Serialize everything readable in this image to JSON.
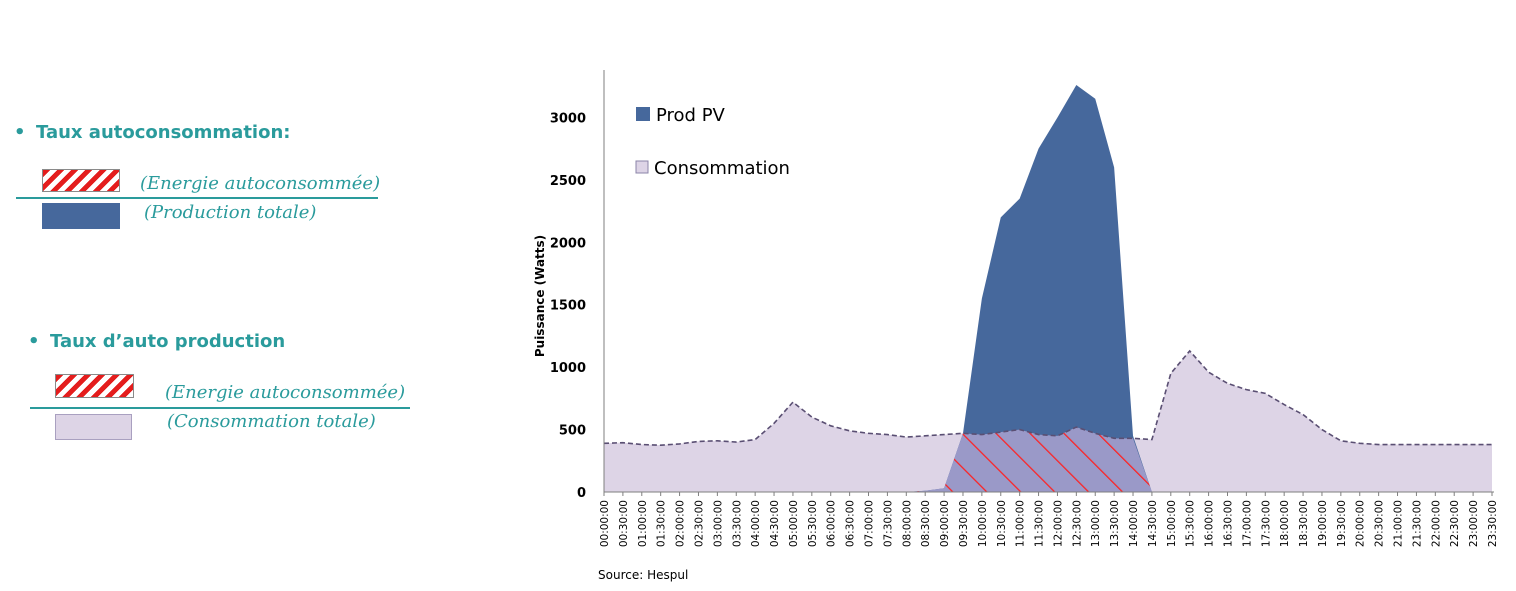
{
  "left": {
    "section1": {
      "bullet": "•",
      "title": "Taux autoconsommation:",
      "numerator": "(Energie autoconsommée)",
      "denominator": "(Production totale)"
    },
    "section2": {
      "bullet": "•",
      "title": "Taux d’auto production",
      "numerator": "(Energie autoconsommée)",
      "denominator": "(Consommation totale)"
    }
  },
  "colors": {
    "teal": "#2a9b9c",
    "prod": "#46689c",
    "conso": "#ddd4e6",
    "overlap": "#9a99c8",
    "hatch": "#ff2020"
  },
  "chart_data": {
    "type": "area",
    "ylabel": "Puissance (Watts)",
    "ylim": [
      0,
      3300
    ],
    "yticks": [
      0,
      500,
      1000,
      1500,
      2000,
      2500,
      3000
    ],
    "x": [
      "00:00:00",
      "00:30:00",
      "01:00:00",
      "01:30:00",
      "02:00:00",
      "02:30:00",
      "03:00:00",
      "03:30:00",
      "04:00:00",
      "04:30:00",
      "05:00:00",
      "05:30:00",
      "06:00:00",
      "06:30:00",
      "07:00:00",
      "07:30:00",
      "08:00:00",
      "08:30:00",
      "09:00:00",
      "09:30:00",
      "10:00:00",
      "10:30:00",
      "11:00:00",
      "11:30:00",
      "12:00:00",
      "12:30:00",
      "13:00:00",
      "13:30:00",
      "14:00:00",
      "14:30:00",
      "15:00:00",
      "15:30:00",
      "16:00:00",
      "16:30:00",
      "17:00:00",
      "17:30:00",
      "18:00:00",
      "18:30:00",
      "19:00:00",
      "19:30:00",
      "20:00:00",
      "20:30:00",
      "21:00:00",
      "21:30:00",
      "22:00:00",
      "22:30:00",
      "23:00:00",
      "23:30:00"
    ],
    "series": [
      {
        "name": "Prod PV",
        "values": [
          0,
          0,
          0,
          0,
          0,
          0,
          0,
          0,
          0,
          0,
          0,
          0,
          0,
          0,
          0,
          0,
          0,
          10,
          30,
          470,
          1550,
          2200,
          2350,
          2750,
          3000,
          3260,
          3150,
          2600,
          450,
          0,
          0,
          0,
          0,
          0,
          0,
          0,
          0,
          0,
          0,
          0,
          0,
          0,
          0,
          0,
          0,
          0,
          0,
          0
        ]
      },
      {
        "name": "Consommation",
        "values": [
          390,
          395,
          380,
          375,
          385,
          405,
          410,
          400,
          420,
          550,
          720,
          600,
          530,
          490,
          470,
          460,
          440,
          450,
          460,
          470,
          460,
          480,
          500,
          460,
          450,
          520,
          470,
          430,
          430,
          420,
          950,
          1130,
          960,
          870,
          820,
          790,
          700,
          620,
          500,
          410,
          390,
          380,
          380,
          380,
          380,
          380,
          380,
          380
        ]
      }
    ],
    "source": "Source: Hespul"
  }
}
